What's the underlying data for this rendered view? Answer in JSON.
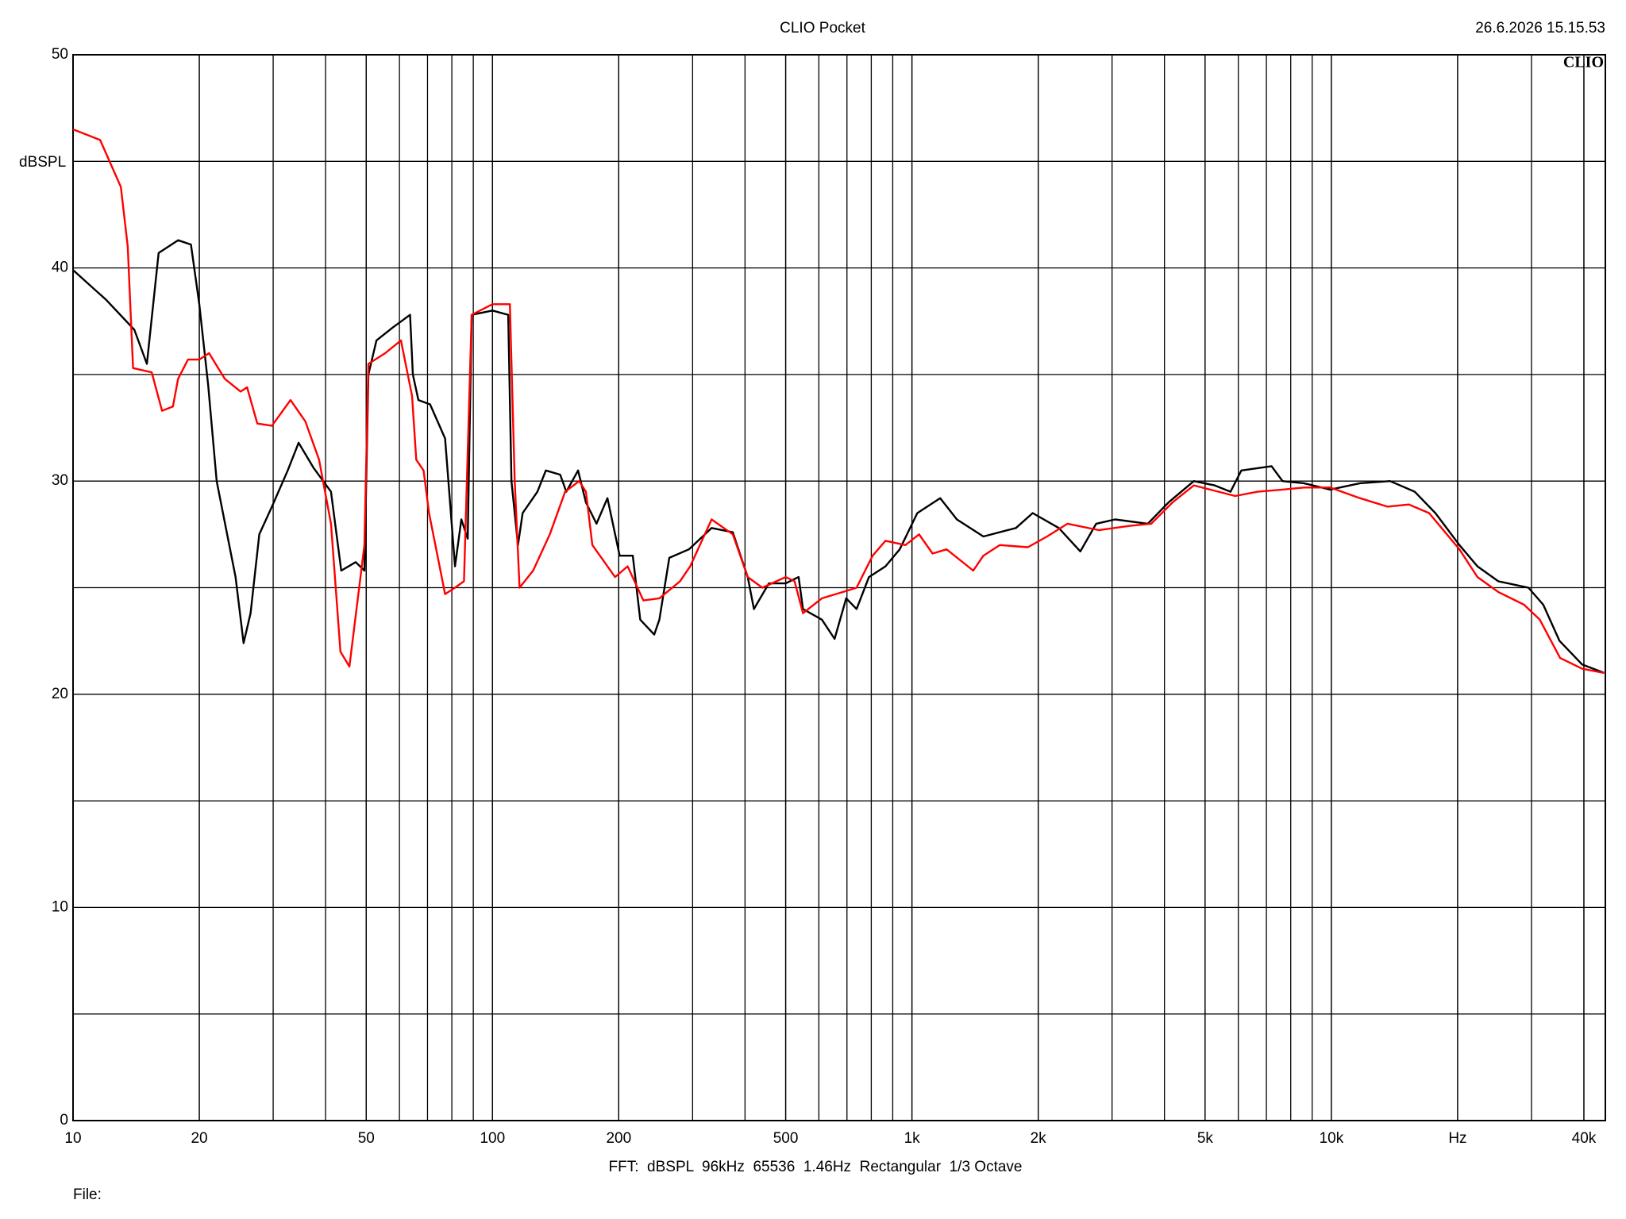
{
  "chart_data": {
    "type": "line",
    "title": "CLIO Pocket",
    "timestamp": "26.6.2026 15.15.53",
    "logo": "CLIO",
    "y_label": "dBSPL",
    "footer": "FFT:  dBSPL  96kHz  65536  1.46Hz  Rectangular  1/3 Octave",
    "file_label": "File:",
    "x_log": true,
    "grid": true,
    "minor_grid": true,
    "xlim": [
      10,
      45000
    ],
    "ylim": [
      0,
      50
    ],
    "xticks": [
      10,
      20,
      50,
      100,
      200,
      500,
      {
        "value": 1000,
        "label": "1k"
      },
      {
        "value": 2000,
        "label": "2k"
      },
      {
        "value": 5000,
        "label": "5k"
      },
      {
        "value": 10000,
        "label": "10k"
      },
      {
        "value": 20000,
        "label": "Hz"
      },
      {
        "value": 40000,
        "label": "40k"
      }
    ],
    "yticks": [
      0,
      10,
      20,
      30,
      40,
      50
    ],
    "series": [
      {
        "color": "#000000",
        "x": [
          10,
          12,
          14,
          15,
          16,
          17.8,
          19.1,
          20,
          21,
          22,
          24.4,
          25.5,
          26.5,
          27.8,
          29.8,
          32.5,
          34.5,
          37.5,
          41.2,
          43.6,
          47.2,
          49.5,
          50.6,
          52.9,
          57.8,
          63.6,
          64.6,
          66.6,
          71,
          77.1,
          81.4,
          84.3,
          87.3,
          89.2,
          100,
          109,
          111,
          115,
          118,
          128,
          134,
          145,
          150,
          160,
          167,
          177,
          188,
          201,
          216,
          225,
          243,
          250,
          264,
          294,
          333,
          374,
          406,
          420,
          456,
          500,
          537,
          550,
          610,
          654,
          697,
          738,
          790,
          865,
          935,
          1030,
          1168,
          1280,
          1480,
          1770,
          1940,
          2240,
          2520,
          2750,
          3050,
          3650,
          4090,
          4700,
          5270,
          5750,
          6100,
          7200,
          7650,
          8600,
          9930,
          11700,
          13800,
          15800,
          17700,
          20200,
          22300,
          25000,
          29500,
          32000,
          35000,
          39600,
          44700
        ],
        "values": [
          39.9,
          38.5,
          37.1,
          35.5,
          40.7,
          41.3,
          41.1,
          38.3,
          34.5,
          30.0,
          25.5,
          22.4,
          23.8,
          27.5,
          28.8,
          30.5,
          31.8,
          30.6,
          29.5,
          25.8,
          26.2,
          25.8,
          35.0,
          36.6,
          37.2,
          37.8,
          35.0,
          33.8,
          33.6,
          32.0,
          26.0,
          28.2,
          27.3,
          37.8,
          38.0,
          37.8,
          30.0,
          27.0,
          28.5,
          29.5,
          30.5,
          30.3,
          29.5,
          30.5,
          29.0,
          28.0,
          29.2,
          26.5,
          26.5,
          23.5,
          22.8,
          23.5,
          26.4,
          26.8,
          27.8,
          27.6,
          25.5,
          24.0,
          25.2,
          25.2,
          25.5,
          24.0,
          23.5,
          22.6,
          24.5,
          24.0,
          25.5,
          26.0,
          26.8,
          28.5,
          29.2,
          28.2,
          27.4,
          27.8,
          28.5,
          27.8,
          26.7,
          28.0,
          28.2,
          28.0,
          29.0,
          30.0,
          29.8,
          29.5,
          30.5,
          30.7,
          30.0,
          29.9,
          29.6,
          29.9,
          30.0,
          29.5,
          28.5,
          27.0,
          26.0,
          25.3,
          25.0,
          24.2,
          22.5,
          21.4,
          21.0
        ]
      },
      {
        "color": "#ff0000",
        "x": [
          10,
          11.6,
          13,
          13.5,
          13.9,
          15.4,
          16.3,
          17.3,
          17.8,
          18.8,
          20,
          21.1,
          23,
          25.1,
          26,
          27.5,
          29.8,
          33,
          35.8,
          38.6,
          41.2,
          43.4,
          45.6,
          49.5,
          50.6,
          55.5,
          60.5,
          64.3,
          65.8,
          68.5,
          70.6,
          77.1,
          81.4,
          85.5,
          89.2,
          100,
          110,
          113,
          116,
          125,
          137,
          149,
          161,
          167,
          173,
          196,
          210,
          229,
          250,
          280,
          296,
          333,
          374,
          406,
          440,
          500,
          525,
          550,
          610,
          685,
          738,
          806,
          865,
          965,
          1040,
          1120,
          1210,
          1400,
          1480,
          1620,
          1890,
          2100,
          2350,
          2790,
          3310,
          3720,
          4180,
          4700,
          5900,
          6670,
          7650,
          8600,
          9930,
          11700,
          13600,
          15300,
          17100,
          20200,
          22300,
          25000,
          28800,
          31400,
          35100,
          39600,
          44700
        ],
        "values": [
          46.5,
          46.0,
          43.8,
          41.0,
          35.3,
          35.1,
          33.3,
          33.5,
          34.8,
          35.7,
          35.7,
          36.0,
          34.8,
          34.2,
          34.4,
          32.7,
          32.6,
          33.8,
          32.8,
          31.0,
          28.0,
          22.0,
          21.3,
          27.0,
          35.5,
          36.0,
          36.6,
          34.0,
          31.0,
          30.5,
          28.5,
          24.7,
          25.0,
          25.3,
          37.8,
          38.3,
          38.3,
          30.0,
          25.0,
          25.8,
          27.5,
          29.5,
          30.0,
          29.5,
          27.0,
          25.5,
          26.0,
          24.4,
          24.5,
          25.3,
          26.0,
          28.2,
          27.5,
          25.5,
          25.0,
          25.5,
          25.3,
          23.8,
          24.5,
          24.8,
          25.0,
          26.5,
          27.2,
          27.0,
          27.5,
          26.6,
          26.8,
          25.8,
          26.5,
          27.0,
          26.9,
          27.4,
          28.0,
          27.7,
          27.9,
          28.0,
          29.0,
          29.8,
          29.3,
          29.5,
          29.6,
          29.7,
          29.7,
          29.2,
          28.8,
          28.9,
          28.5,
          26.8,
          25.5,
          24.8,
          24.2,
          23.5,
          21.7,
          21.2,
          21.0
        ]
      }
    ]
  }
}
